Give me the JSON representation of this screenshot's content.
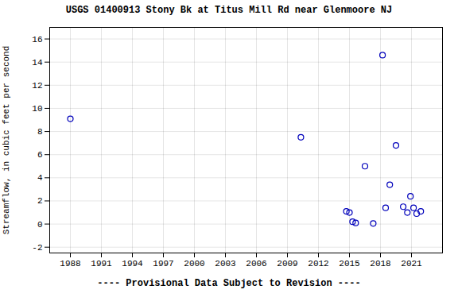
{
  "chart_data": {
    "type": "scatter",
    "title": "USGS 01400913 Stony Bk at Titus Mill Rd near Glenmoore NJ",
    "ylabel": "Streamflow, in cubic feet per second",
    "footnote": "---- Provisional Data Subject to Revision ----",
    "x": [
      1988.0,
      2010.3,
      2014.7,
      2015.0,
      2015.3,
      2015.6,
      2016.5,
      2017.3,
      2018.2,
      2018.5,
      2018.9,
      2019.5,
      2020.2,
      2020.6,
      2020.9,
      2021.2,
      2021.5,
      2021.9
    ],
    "values": [
      9.1,
      7.5,
      1.1,
      1.0,
      0.2,
      0.1,
      5.0,
      0.05,
      14.6,
      1.4,
      3.4,
      6.8,
      1.5,
      1.0,
      2.4,
      1.4,
      0.9,
      1.1
    ],
    "color": "#0000bb",
    "marker": "circle",
    "xlim": [
      1986.0,
      2024.0
    ],
    "ylim": [
      -2.5,
      17.0
    ],
    "xticks": [
      1988,
      1991,
      1994,
      1997,
      2000,
      2003,
      2006,
      2009,
      2012,
      2015,
      2018,
      2021
    ],
    "yticks": [
      -2,
      0,
      2,
      4,
      6,
      8,
      10,
      12,
      14,
      16
    ],
    "grid": true
  }
}
